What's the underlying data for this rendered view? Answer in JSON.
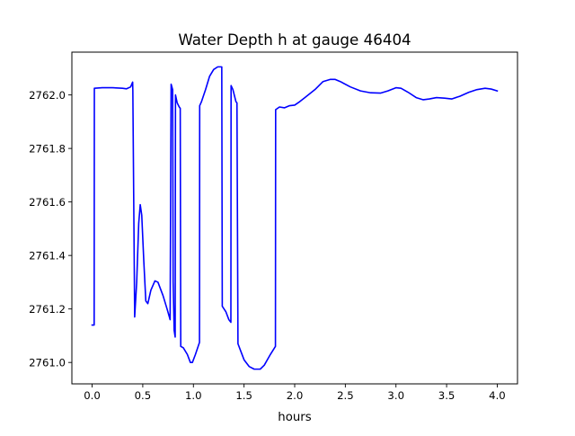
{
  "chart_data": {
    "type": "line",
    "title": "Water Depth h at gauge 46404",
    "xlabel": "hours",
    "ylabel": "",
    "xlim": [
      -0.2,
      4.2
    ],
    "ylim": [
      2760.92,
      2762.16
    ],
    "xticks": [
      0.0,
      0.5,
      1.0,
      1.5,
      2.0,
      2.5,
      3.0,
      3.5,
      4.0
    ],
    "xtick_labels": [
      "0.0",
      "0.5",
      "1.0",
      "1.5",
      "2.0",
      "2.5",
      "3.0",
      "3.5",
      "4.0"
    ],
    "yticks": [
      2761.0,
      2761.2,
      2761.4,
      2761.6,
      2761.8,
      2762.0
    ],
    "ytick_labels": [
      "2761.0",
      "2761.2",
      "2761.4",
      "2761.6",
      "2761.8",
      "2762.0"
    ],
    "grid": false,
    "legend": false,
    "series": [
      {
        "color": "#0000ff",
        "points": [
          [
            0.0,
            2761.14
          ],
          [
            0.02,
            2761.14
          ],
          [
            0.022,
            2762.025
          ],
          [
            0.1,
            2762.027
          ],
          [
            0.2,
            2762.027
          ],
          [
            0.3,
            2762.025
          ],
          [
            0.34,
            2762.023
          ],
          [
            0.38,
            2762.03
          ],
          [
            0.4,
            2762.048
          ],
          [
            0.402,
            2762.015
          ],
          [
            0.42,
            2761.17
          ],
          [
            0.44,
            2761.3
          ],
          [
            0.46,
            2761.52
          ],
          [
            0.475,
            2761.59
          ],
          [
            0.49,
            2761.55
          ],
          [
            0.51,
            2761.38
          ],
          [
            0.53,
            2761.23
          ],
          [
            0.55,
            2761.22
          ],
          [
            0.58,
            2761.27
          ],
          [
            0.62,
            2761.305
          ],
          [
            0.65,
            2761.3
          ],
          [
            0.7,
            2761.25
          ],
          [
            0.74,
            2761.2
          ],
          [
            0.77,
            2761.16
          ],
          [
            0.78,
            2762.04
          ],
          [
            0.795,
            2762.02
          ],
          [
            0.8,
            2761.3
          ],
          [
            0.81,
            2761.12
          ],
          [
            0.82,
            2761.095
          ],
          [
            0.823,
            2762.0
          ],
          [
            0.84,
            2761.97
          ],
          [
            0.86,
            2761.955
          ],
          [
            0.87,
            2761.95
          ],
          [
            0.875,
            2761.06
          ],
          [
            0.9,
            2761.055
          ],
          [
            0.94,
            2761.03
          ],
          [
            0.97,
            2761.0
          ],
          [
            0.99,
            2761.0
          ],
          [
            1.02,
            2761.03
          ],
          [
            1.06,
            2761.075
          ],
          [
            1.062,
            2761.96
          ],
          [
            1.08,
            2761.975
          ],
          [
            1.12,
            2762.02
          ],
          [
            1.16,
            2762.07
          ],
          [
            1.2,
            2762.095
          ],
          [
            1.24,
            2762.105
          ],
          [
            1.28,
            2762.105
          ],
          [
            1.285,
            2761.21
          ],
          [
            1.32,
            2761.19
          ],
          [
            1.35,
            2761.16
          ],
          [
            1.37,
            2761.15
          ],
          [
            1.372,
            2762.035
          ],
          [
            1.39,
            2762.02
          ],
          [
            1.42,
            2761.975
          ],
          [
            1.43,
            2761.97
          ],
          [
            1.44,
            2761.07
          ],
          [
            1.47,
            2761.04
          ],
          [
            1.5,
            2761.01
          ],
          [
            1.55,
            2760.985
          ],
          [
            1.6,
            2760.975
          ],
          [
            1.66,
            2760.975
          ],
          [
            1.7,
            2760.99
          ],
          [
            1.76,
            2761.03
          ],
          [
            1.81,
            2761.06
          ],
          [
            1.812,
            2761.945
          ],
          [
            1.85,
            2761.955
          ],
          [
            1.9,
            2761.952
          ],
          [
            1.95,
            2761.96
          ],
          [
            2.0,
            2761.962
          ],
          [
            2.05,
            2761.975
          ],
          [
            2.1,
            2761.99
          ],
          [
            2.2,
            2762.02
          ],
          [
            2.28,
            2762.05
          ],
          [
            2.35,
            2762.058
          ],
          [
            2.4,
            2762.058
          ],
          [
            2.45,
            2762.05
          ],
          [
            2.55,
            2762.03
          ],
          [
            2.65,
            2762.015
          ],
          [
            2.75,
            2762.008
          ],
          [
            2.85,
            2762.007
          ],
          [
            2.92,
            2762.015
          ],
          [
            3.0,
            2762.027
          ],
          [
            3.05,
            2762.025
          ],
          [
            3.12,
            2762.01
          ],
          [
            3.2,
            2761.99
          ],
          [
            3.27,
            2761.982
          ],
          [
            3.33,
            2761.985
          ],
          [
            3.4,
            2761.99
          ],
          [
            3.48,
            2761.988
          ],
          [
            3.55,
            2761.985
          ],
          [
            3.63,
            2761.995
          ],
          [
            3.72,
            2762.01
          ],
          [
            3.8,
            2762.02
          ],
          [
            3.88,
            2762.025
          ],
          [
            3.94,
            2762.022
          ],
          [
            4.0,
            2762.015
          ]
        ]
      }
    ]
  }
}
